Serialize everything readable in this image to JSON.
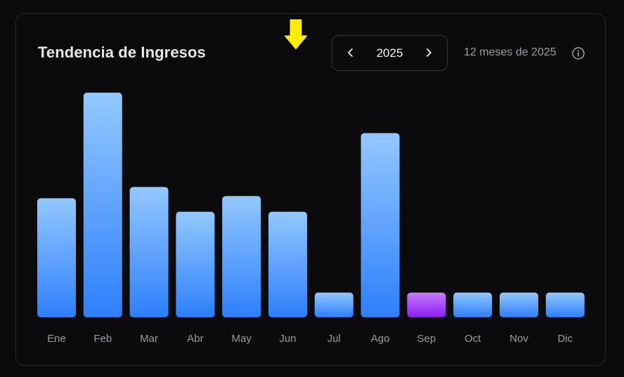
{
  "card": {
    "title": "Tendencia de Ingresos",
    "year": "2025",
    "period_label": "12 meses de 2025",
    "prev_icon": "chevron-left-icon",
    "next_icon": "chevron-right-icon",
    "info_icon": "info-icon",
    "pointer_icon": "arrow-down-icon"
  },
  "colors": {
    "bar_top": "#93c8ff",
    "bar_bottom": "#2d7ffb",
    "highlight_top": "#c57bff",
    "highlight_bottom": "#8c1ff0",
    "pointer": "#ffee00",
    "axis_label": "#9a9aa3"
  },
  "chart_data": {
    "type": "bar",
    "categories": [
      "Ene",
      "Feb",
      "Mar",
      "Abr",
      "May",
      "Jun",
      "Jul",
      "Ago",
      "Sep",
      "Oct",
      "Nov",
      "Dic"
    ],
    "values": [
      53,
      100,
      58,
      47,
      54,
      47,
      11,
      82,
      11,
      11,
      11,
      11
    ],
    "highlighted_category": "Sep",
    "ylim": [
      0,
      100
    ],
    "grid": false,
    "legend": "none"
  }
}
